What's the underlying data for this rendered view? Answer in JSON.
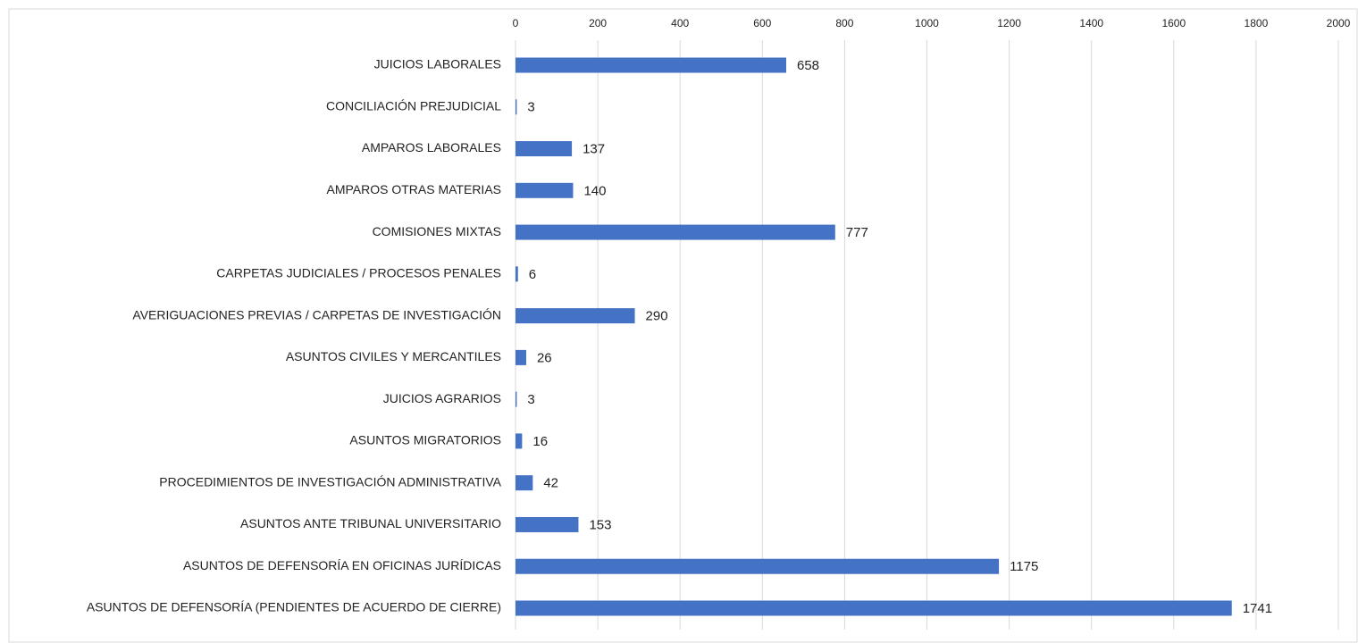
{
  "chart_data": {
    "type": "bar",
    "orientation": "horizontal",
    "categories": [
      "JUICIOS LABORALES",
      "CONCILIACIÓN PREJUDICIAL",
      "AMPAROS LABORALES",
      "AMPAROS OTRAS MATERIAS",
      "COMISIONES MIXTAS",
      "CARPETAS JUDICIALES / PROCESOS PENALES",
      "AVERIGUACIONES PREVIAS / CARPETAS DE INVESTIGACIÓN",
      "ASUNTOS CIVILES Y MERCANTILES",
      "JUICIOS AGRARIOS",
      "ASUNTOS MIGRATORIOS",
      "PROCEDIMIENTOS DE INVESTIGACIÓN ADMINISTRATIVA",
      "ASUNTOS ANTE TRIBUNAL UNIVERSITARIO",
      "ASUNTOS DE DEFENSORÍA EN OFICINAS JURÍDICAS",
      "ASUNTOS DE DEFENSORÍA (PENDIENTES DE ACUERDO DE CIERRE)"
    ],
    "values": [
      658,
      3,
      137,
      140,
      777,
      6,
      290,
      26,
      3,
      16,
      42,
      153,
      1175,
      1741
    ],
    "color": "#4472c4",
    "xlim": [
      0,
      2000
    ],
    "xticks": [
      0,
      200,
      400,
      600,
      800,
      1000,
      1200,
      1400,
      1600,
      1800,
      2000
    ],
    "grid": true
  }
}
